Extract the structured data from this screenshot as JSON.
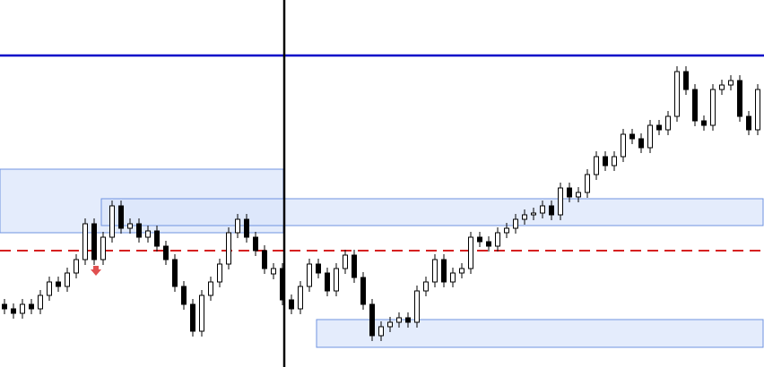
{
  "chart_data": {
    "type": "candlestick",
    "ylim": [
      0,
      410
    ],
    "up_color": "#ffffff",
    "down_color": "#000000",
    "wick_color": "#000000",
    "open": [
      70,
      65,
      60,
      70,
      65,
      80,
      95,
      90,
      105,
      120,
      160,
      120,
      145,
      180,
      155,
      160,
      145,
      152,
      135,
      120,
      90,
      70,
      40,
      80,
      95,
      115,
      150,
      165,
      145,
      130,
      104,
      110,
      75,
      65,
      90,
      115,
      105,
      85,
      110,
      125,
      100,
      70,
      35,
      45,
      50,
      55,
      50,
      85,
      95,
      120,
      95,
      105,
      110,
      145,
      140,
      135,
      150,
      155,
      165,
      170,
      172,
      180,
      170,
      200,
      190,
      195,
      215,
      235,
      225,
      235,
      260,
      255,
      245,
      270,
      265,
      280,
      330,
      310,
      275,
      270,
      310,
      315,
      320,
      280,
      265
    ],
    "high": [
      76,
      71,
      76,
      76,
      86,
      101,
      101,
      111,
      126,
      166,
      166,
      151,
      186,
      186,
      166,
      166,
      158,
      158,
      141,
      126,
      96,
      76,
      86,
      101,
      121,
      156,
      171,
      171,
      151,
      136,
      116,
      116,
      81,
      96,
      121,
      121,
      111,
      116,
      131,
      131,
      106,
      76,
      51,
      56,
      61,
      61,
      91,
      101,
      126,
      126,
      111,
      116,
      151,
      151,
      146,
      156,
      161,
      171,
      176,
      178,
      186,
      186,
      206,
      206,
      201,
      221,
      241,
      241,
      241,
      266,
      266,
      261,
      276,
      276,
      286,
      336,
      336,
      316,
      281,
      316,
      321,
      326,
      326,
      286,
      316
    ],
    "low": [
      59,
      54,
      54,
      59,
      59,
      74,
      84,
      84,
      99,
      114,
      114,
      114,
      139,
      149,
      149,
      139,
      139,
      129,
      114,
      84,
      64,
      34,
      34,
      74,
      89,
      109,
      144,
      139,
      124,
      104,
      98,
      69,
      59,
      59,
      84,
      99,
      79,
      79,
      104,
      94,
      64,
      29,
      29,
      39,
      44,
      44,
      44,
      79,
      89,
      89,
      89,
      99,
      104,
      134,
      129,
      129,
      144,
      149,
      159,
      164,
      166,
      164,
      164,
      184,
      184,
      189,
      209,
      219,
      219,
      229,
      249,
      239,
      239,
      259,
      259,
      274,
      304,
      269,
      264,
      264,
      304,
      309,
      274,
      259,
      259
    ],
    "close": [
      65,
      60,
      70,
      65,
      80,
      95,
      90,
      105,
      120,
      160,
      120,
      145,
      180,
      155,
      160,
      145,
      152,
      135,
      120,
      90,
      70,
      40,
      80,
      95,
      115,
      150,
      165,
      145,
      130,
      110,
      110,
      75,
      65,
      90,
      115,
      105,
      85,
      110,
      125,
      100,
      70,
      35,
      45,
      50,
      55,
      50,
      85,
      95,
      120,
      95,
      105,
      110,
      145,
      140,
      135,
      150,
      155,
      165,
      170,
      172,
      180,
      170,
      200,
      190,
      195,
      215,
      235,
      225,
      235,
      260,
      255,
      245,
      270,
      265,
      280,
      330,
      310,
      275,
      270,
      310,
      315,
      320,
      280,
      265,
      310
    ],
    "lines": [
      {
        "value": 348,
        "color": "#0000c8",
        "style": "solid"
      },
      {
        "value": 130,
        "color": "#d62020",
        "style": "dashed"
      }
    ],
    "zones": [
      {
        "high": 221,
        "low": 150,
        "color": "#dbe6fb"
      },
      {
        "high": 188,
        "low": 158,
        "color": "#dbe6fb"
      },
      {
        "high": 53,
        "low": 22,
        "color": "#dbe6fb"
      }
    ]
  }
}
